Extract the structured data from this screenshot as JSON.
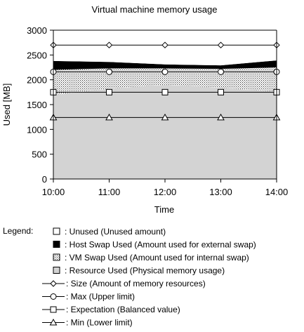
{
  "chart_data": {
    "type": "area",
    "title": "Virtual machine memory usage",
    "xlabel": "Time",
    "ylabel": "Used [MB]",
    "ylim": [
      0,
      3000
    ],
    "yticks": [
      0,
      500,
      1000,
      1500,
      2000,
      2500,
      3000
    ],
    "categories": [
      "10:00",
      "11:00",
      "12:00",
      "13:00",
      "14:00"
    ],
    "grid": false,
    "legend_title": "Legend:",
    "legend_position": "bottom",
    "stacked_areas": [
      {
        "name": ": Resource Used (Physical memory usage)",
        "fill": "#d3d3d3",
        "pattern": "solid",
        "values": [
          1700,
          1820,
          1900,
          1840,
          1760
        ]
      },
      {
        "name": ": VM Swap Used (Amount used for internal swap)",
        "fill": "#ffffff",
        "pattern": "dots",
        "values": [
          500,
          410,
          330,
          380,
          490
        ]
      },
      {
        "name": ": Host Swap Used (Amount used for external swap)",
        "fill": "#000000",
        "pattern": "solid",
        "values": [
          180,
          130,
          80,
          70,
          140
        ]
      },
      {
        "name": ": Unused (Unused amount)",
        "fill": "#ffffff",
        "pattern": "solid",
        "values": [
          320,
          340,
          390,
          410,
          310
        ]
      }
    ],
    "lines": [
      {
        "name": ": Size (Amount of memory resources)",
        "marker": "diamond",
        "values": [
          2700,
          2700,
          2700,
          2700,
          2700
        ]
      },
      {
        "name": ": Max (Upper limit)",
        "marker": "circle",
        "values": [
          2160,
          2160,
          2160,
          2160,
          2160
        ]
      },
      {
        "name": ": Expectation (Balanced value)",
        "marker": "square",
        "values": [
          1750,
          1750,
          1750,
          1750,
          1750
        ]
      },
      {
        "name": ": Min (Lower limit)",
        "marker": "triangle",
        "values": [
          1240,
          1240,
          1240,
          1240,
          1240
        ]
      }
    ],
    "colors": {
      "axis": "#000000",
      "line": "#000000",
      "resource": "#d3d3d3",
      "host_swap": "#000000",
      "vm_swap_bg": "#ffffff",
      "vm_swap_dot": "#333333",
      "unused": "#ffffff",
      "marker_fill": "#ffffff"
    }
  }
}
